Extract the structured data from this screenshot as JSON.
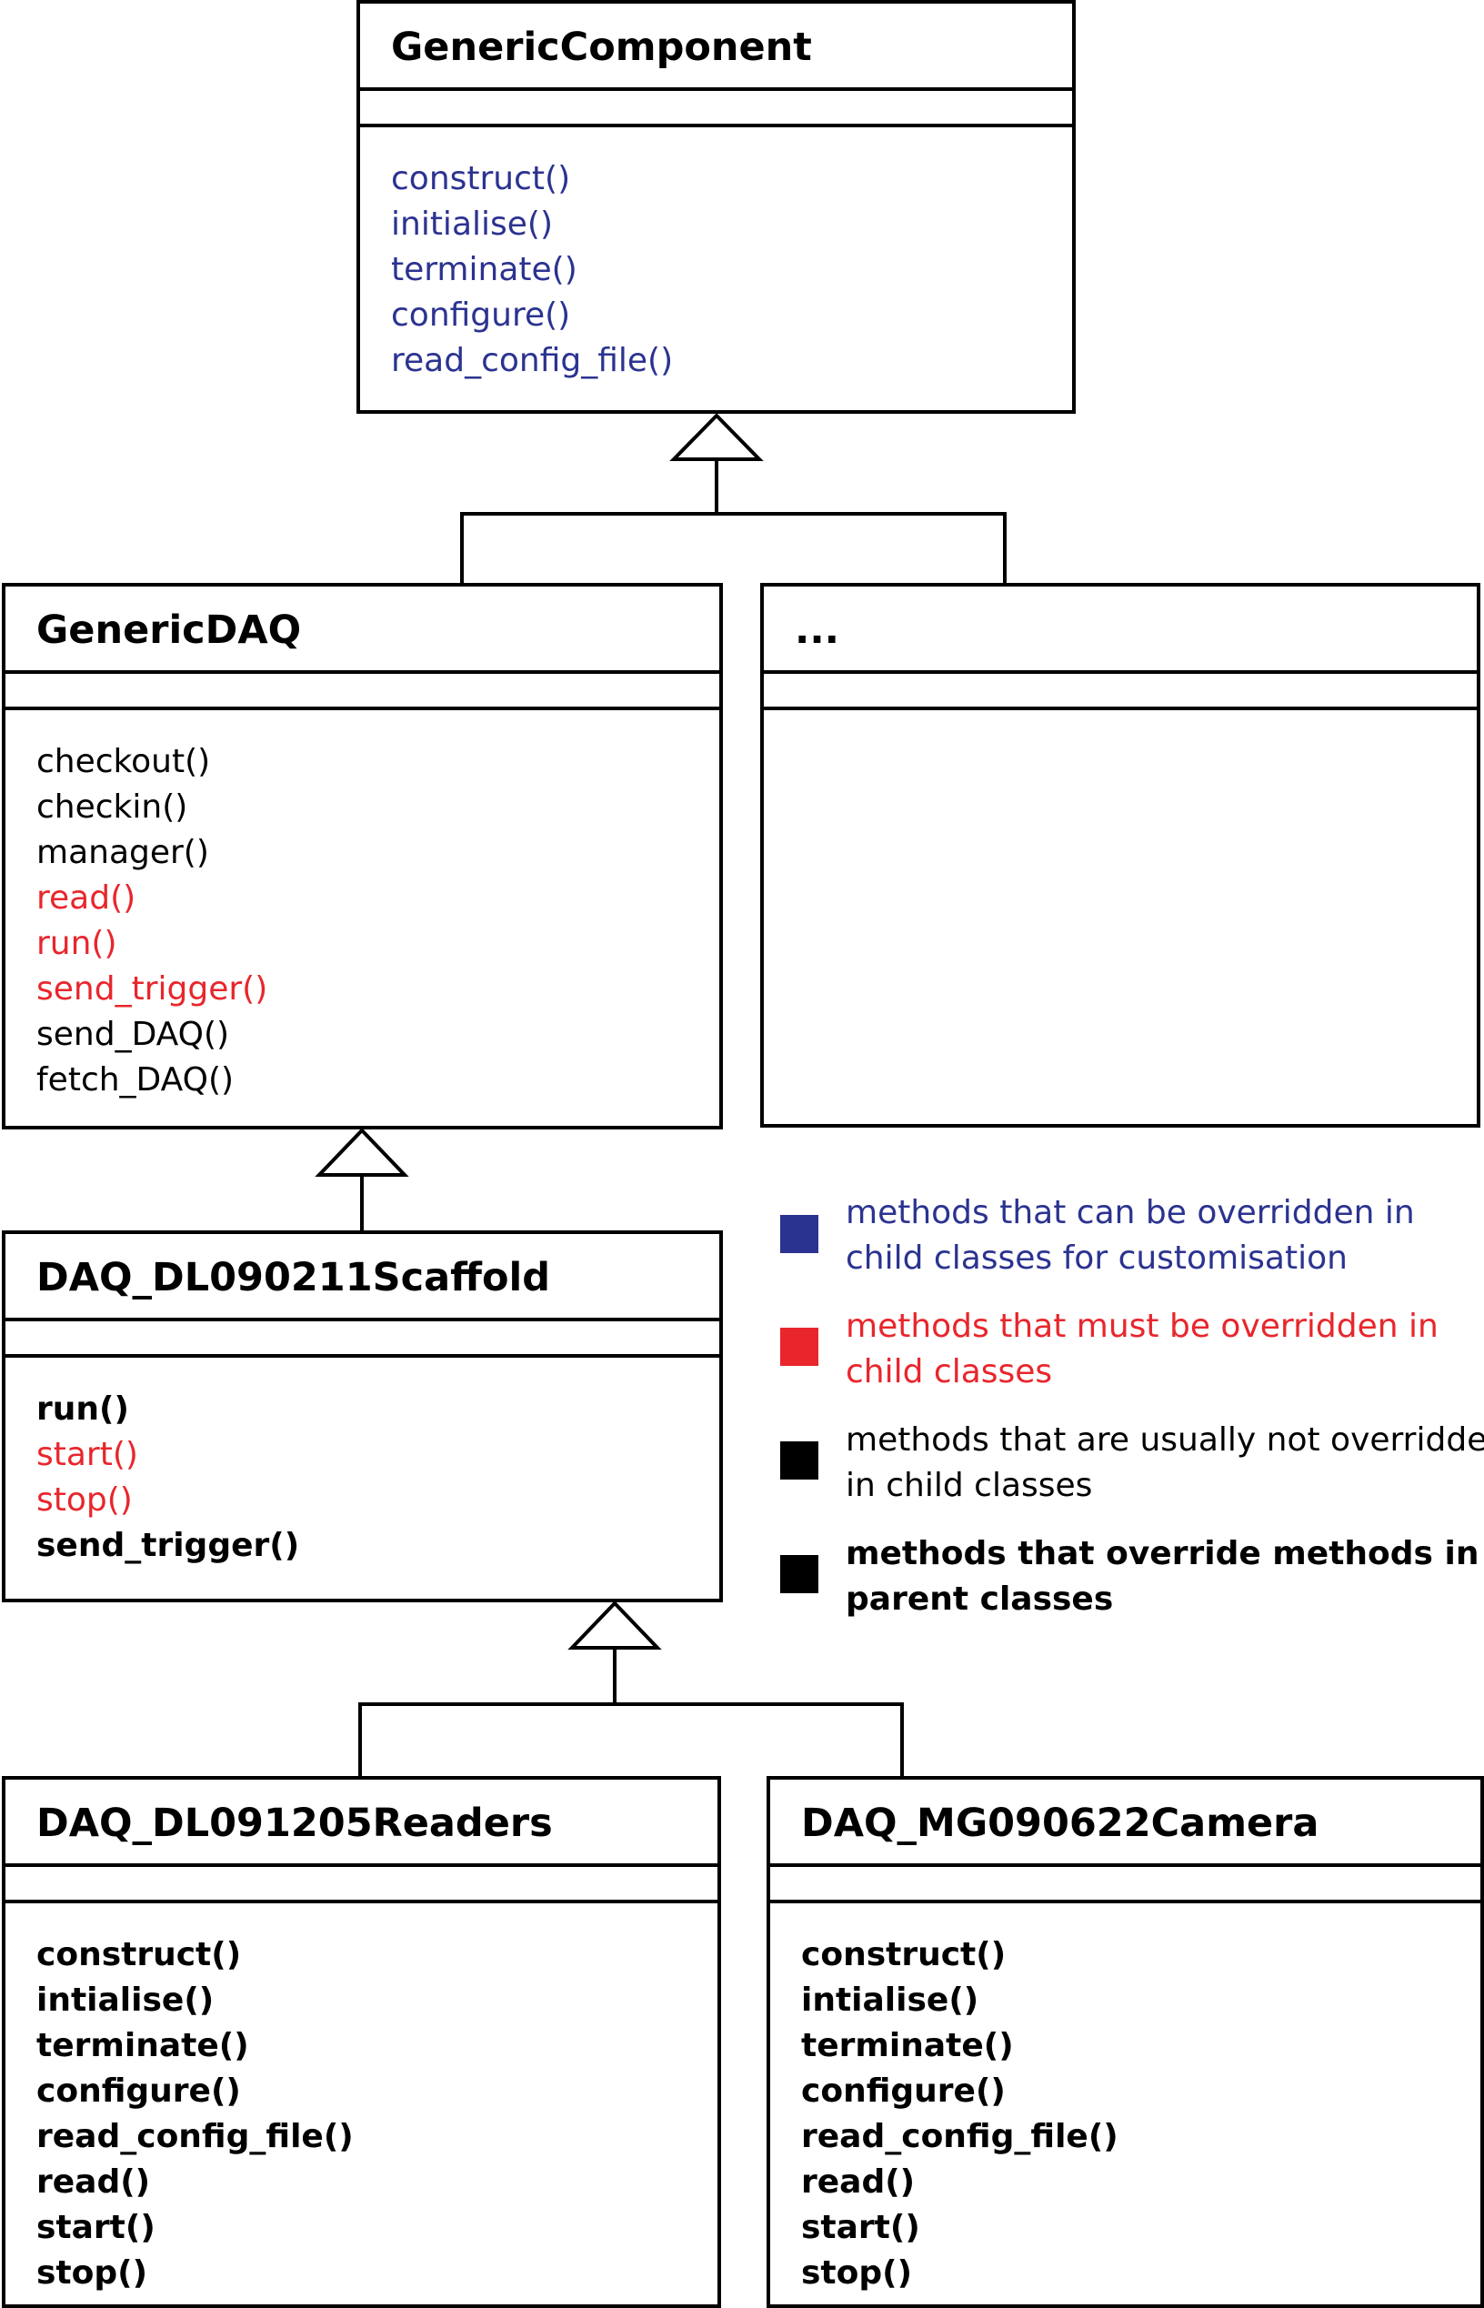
{
  "colors": {
    "overridable": "#2b3390",
    "must_override": "#e8262c",
    "normal": "#000000",
    "overrides": "#000000"
  },
  "classes": {
    "generic_component": {
      "name": "GenericComponent",
      "methods": [
        "construct()",
        "initialise()",
        "terminate()",
        "configure()",
        "read_config_file()"
      ]
    },
    "generic_daq": {
      "name": "GenericDAQ",
      "methods": [
        "checkout()",
        "checkin()",
        "manager()",
        "read()",
        "run()",
        "send_trigger()",
        "send_DAQ()",
        "fetch_DAQ()"
      ]
    },
    "other": {
      "name": "..."
    },
    "scaffold": {
      "name": "DAQ_DL090211Scaffold",
      "methods": [
        "run()",
        "start()",
        "stop()",
        "send_trigger()"
      ]
    },
    "readers": {
      "name": "DAQ_DL091205Readers",
      "methods": [
        "construct()",
        "intialise()",
        "terminate()",
        "configure()",
        "read_config_file()",
        "read()",
        "start()",
        "stop()"
      ]
    },
    "camera": {
      "name": "DAQ_MG090622Camera",
      "methods": [
        "construct()",
        "intialise()",
        "terminate()",
        "configure()",
        "read_config_file()",
        "read()",
        "start()",
        "stop()"
      ]
    }
  },
  "legend": {
    "overridable": [
      "methods that can be overridden in",
      "child classes for customisation"
    ],
    "must_override": [
      "methods that must be overridden in",
      "child classes"
    ],
    "normal": [
      "methods that are usually not overridden",
      "in child classes"
    ],
    "overrides": [
      "methods that override methods in",
      "parent classes"
    ]
  }
}
